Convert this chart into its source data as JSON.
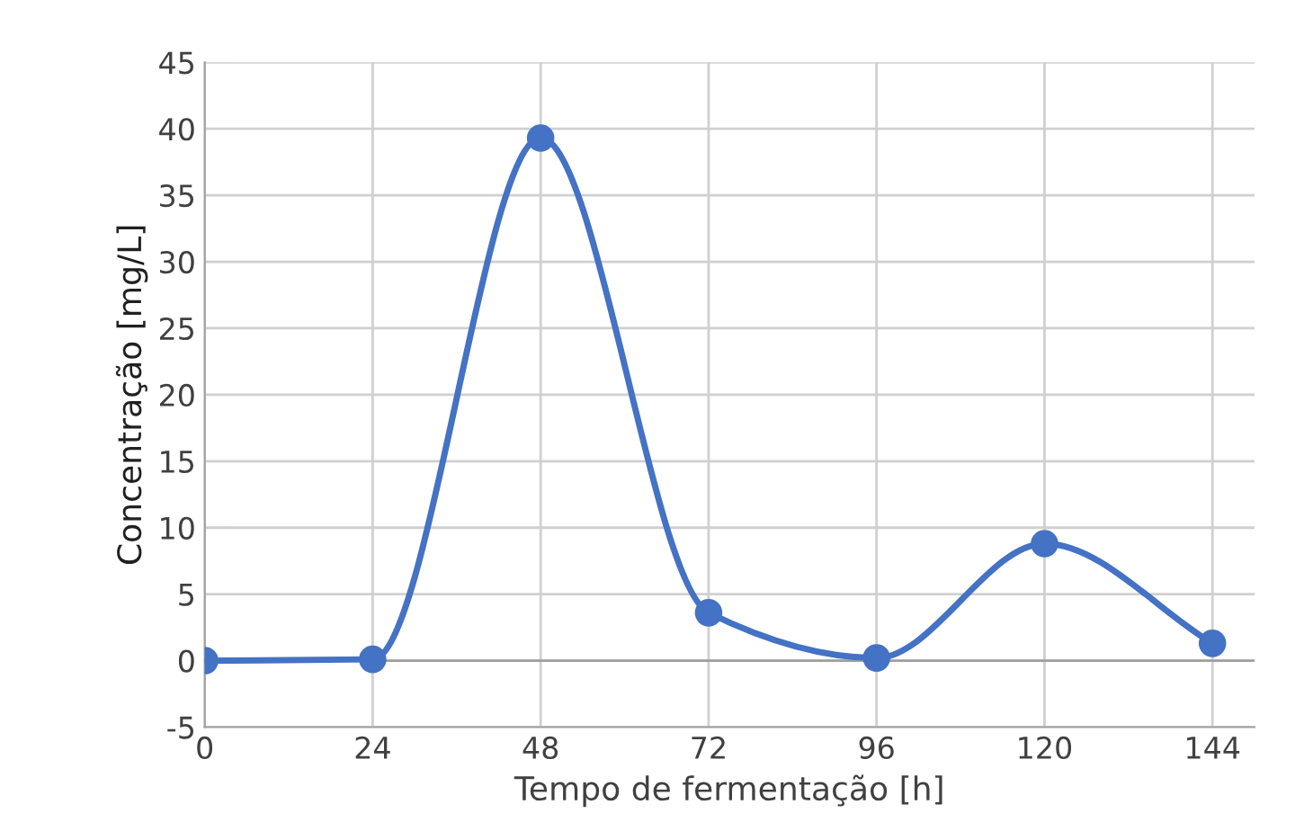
{
  "chart_data": {
    "type": "line",
    "xlabel": "Tempo de fermentação [h]",
    "ylabel": "Concentração [mg/L]",
    "x": [
      0,
      24,
      48,
      72,
      96,
      120,
      144
    ],
    "series": [
      {
        "color": "#4472c4",
        "values": [
          0,
          0.1,
          39.3,
          3.6,
          0.2,
          8.8,
          1.3
        ]
      }
    ],
    "xlim": [
      0,
      150
    ],
    "xticks": [
      0,
      24,
      48,
      72,
      96,
      120,
      144
    ],
    "ylim": [
      -5,
      45
    ],
    "yticks": [
      -5,
      0,
      5,
      10,
      15,
      20,
      25,
      30,
      35,
      40,
      45
    ],
    "grid": true,
    "marker": "circle",
    "line_style": "solid",
    "legend": false
  }
}
